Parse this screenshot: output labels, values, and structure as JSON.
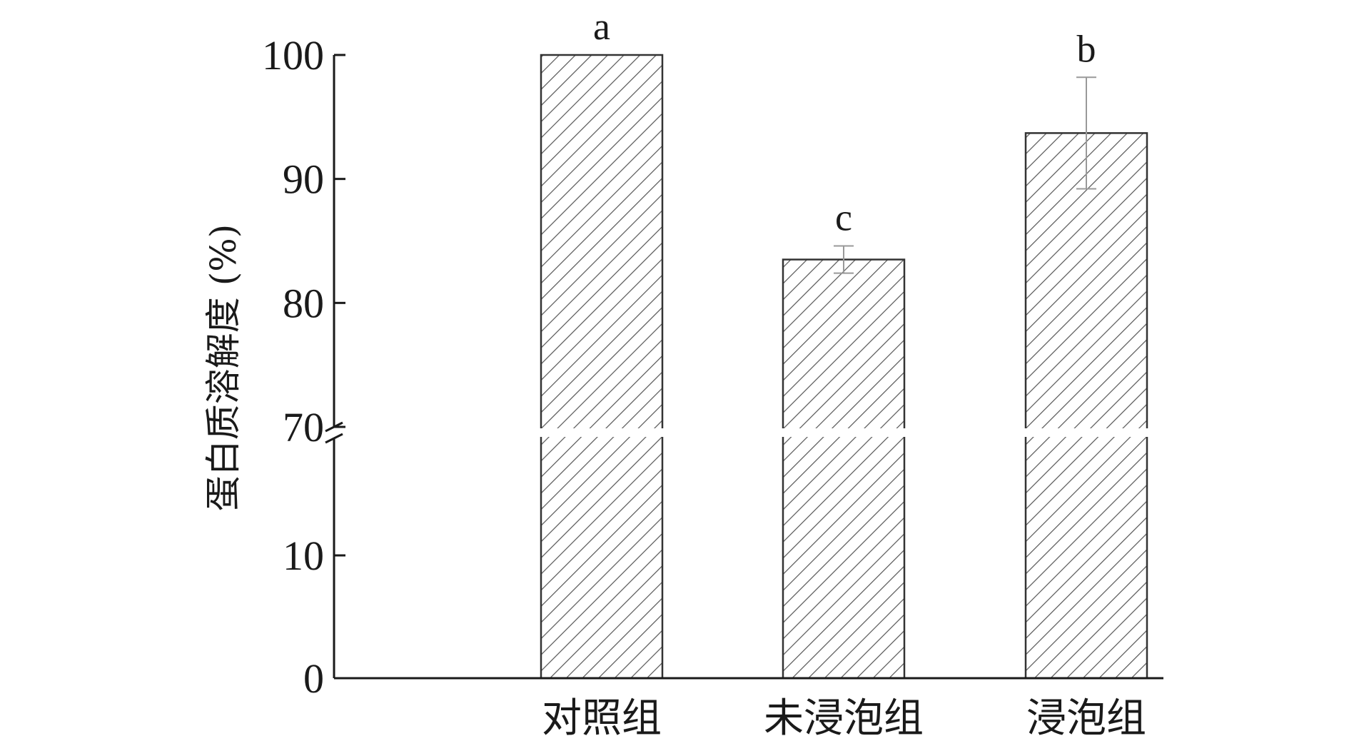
{
  "chart_data": {
    "type": "bar",
    "title": "",
    "xlabel": "",
    "ylabel": "蛋白质溶解度 (%)",
    "categories": [
      "对照组",
      "未浸泡组",
      "浸泡组"
    ],
    "values": [
      100,
      83.5,
      93.7
    ],
    "error": [
      0,
      1.1,
      4.5
    ],
    "significance": [
      "a",
      "c",
      "b"
    ],
    "ylim": [
      0,
      100
    ],
    "axis_break": [
      10,
      70
    ],
    "yticks": [
      {
        "value": 0,
        "label": "0"
      },
      {
        "value": 10,
        "label": "10"
      },
      {
        "value": 70,
        "label": "70"
      },
      {
        "value": 80,
        "label": "80"
      },
      {
        "value": 90,
        "label": "90"
      },
      {
        "value": 100,
        "label": "100"
      }
    ],
    "bar_pattern": "diagonal-hatch",
    "grid": false,
    "colors": {
      "axis": "#1a1a1a",
      "bar_edge": "#333333",
      "hatch": "#555555",
      "error": "#999999"
    }
  }
}
